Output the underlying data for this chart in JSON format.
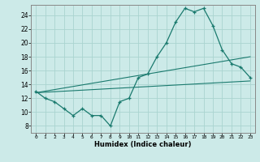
{
  "title": "",
  "xlabel": "Humidex (Indice chaleur)",
  "ylabel": "",
  "bg_color": "#cceae8",
  "line_color": "#1a7a6e",
  "grid_color": "#aad4d0",
  "xlim": [
    -0.5,
    23.5
  ],
  "ylim": [
    7.0,
    25.5
  ],
  "xticks": [
    0,
    1,
    2,
    3,
    4,
    5,
    6,
    7,
    8,
    9,
    10,
    11,
    12,
    13,
    14,
    15,
    16,
    17,
    18,
    19,
    20,
    21,
    22,
    23
  ],
  "yticks": [
    8,
    10,
    12,
    14,
    16,
    18,
    20,
    22,
    24
  ],
  "line1_x": [
    0,
    1,
    2,
    3,
    4,
    5,
    6,
    7,
    8,
    9,
    10,
    11,
    12,
    13,
    14,
    15,
    16,
    17,
    18,
    19,
    20,
    21,
    22,
    23
  ],
  "line1_y": [
    13.0,
    12.0,
    11.5,
    10.5,
    9.5,
    10.5,
    9.5,
    9.5,
    8.0,
    11.5,
    12.0,
    15.0,
    15.5,
    18.0,
    20.0,
    23.0,
    25.0,
    24.5,
    25.0,
    22.5,
    19.0,
    17.0,
    16.5,
    15.0
  ],
  "line2_x": [
    0,
    23
  ],
  "line2_y": [
    12.8,
    14.5
  ],
  "line3_x": [
    0,
    23
  ],
  "line3_y": [
    12.8,
    18.0
  ]
}
